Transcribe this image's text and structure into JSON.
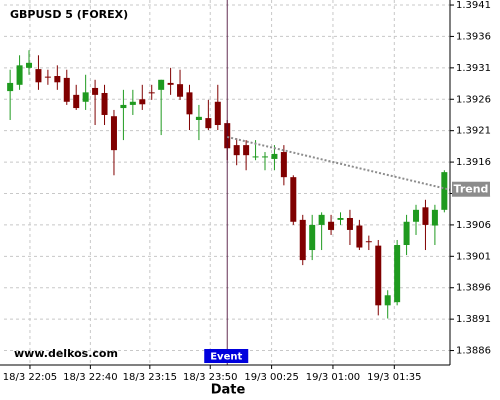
{
  "chart_data": {
    "type": "candlestick",
    "title": "GBPUSD 5 (FOREX)",
    "x_label": "Date",
    "watermark": "www.delkos.com",
    "up_color": "#1f9a1f",
    "down_color": "#800000",
    "grid": true,
    "ohlc": [
      [
        1.39273,
        1.39307,
        1.39227,
        1.39286
      ],
      [
        1.39283,
        1.3933,
        1.39275,
        1.39314
      ],
      [
        1.3931,
        1.39338,
        1.39299,
        1.39318
      ],
      [
        1.39308,
        1.3933,
        1.39275,
        1.39287
      ],
      [
        1.39296,
        1.39307,
        1.39283,
        1.39295
      ],
      [
        1.39297,
        1.39314,
        1.39275,
        1.39287
      ],
      [
        1.39294,
        1.39307,
        1.39251,
        1.39256
      ],
      [
        1.39267,
        1.39283,
        1.39243,
        1.39246
      ],
      [
        1.39256,
        1.39299,
        1.39243,
        1.39271
      ],
      [
        1.39278,
        1.39291,
        1.39219,
        1.39267
      ],
      [
        1.3927,
        1.39283,
        1.39219,
        1.39235
      ],
      [
        1.39233,
        1.39243,
        1.39139,
        1.39179
      ],
      [
        1.39246,
        1.39275,
        1.39195,
        1.39251
      ],
      [
        1.39251,
        1.39275,
        1.39235,
        1.39256
      ],
      [
        1.3926,
        1.39283,
        1.39243,
        1.39252
      ],
      [
        1.39271,
        1.39283,
        1.39259,
        1.3927
      ],
      [
        1.39275,
        1.39291,
        1.39203,
        1.39291
      ],
      [
        1.39286,
        1.3931,
        1.39267,
        1.39283
      ],
      [
        1.39284,
        1.39307,
        1.39259,
        1.39264
      ],
      [
        1.39271,
        1.39283,
        1.39211,
        1.39236
      ],
      [
        1.39227,
        1.39251,
        1.39195,
        1.39232
      ],
      [
        1.3923,
        1.39259,
        1.39211,
        1.39214
      ],
      [
        1.39256,
        1.39283,
        1.39211,
        1.39219
      ],
      [
        1.39222,
        1.39227,
        1.39163,
        1.39182
      ],
      [
        1.39187,
        1.39198,
        1.39155,
        1.39171
      ],
      [
        1.39187,
        1.39195,
        1.39147,
        1.39171
      ],
      [
        1.39168,
        1.39195,
        1.39163,
        1.39169
      ],
      [
        1.39168,
        1.39176,
        1.39147,
        1.39169
      ],
      [
        1.39165,
        1.39187,
        1.39147,
        1.39173
      ],
      [
        1.39176,
        1.39187,
        1.39123,
        1.39136
      ],
      [
        1.39136,
        1.39139,
        1.3906,
        1.39065
      ],
      [
        1.39068,
        1.39076,
        1.38996,
        1.39004
      ],
      [
        1.3902,
        1.39076,
        1.39004,
        1.3906
      ],
      [
        1.3906,
        1.3908,
        1.3902,
        1.39076
      ],
      [
        1.39065,
        1.39076,
        1.39044,
        1.39052
      ],
      [
        1.39068,
        1.3908,
        1.3906,
        1.39071
      ],
      [
        1.39071,
        1.39084,
        1.39028,
        1.39052
      ],
      [
        1.39059,
        1.39068,
        1.3902,
        1.39024
      ],
      [
        1.39034,
        1.39043,
        1.3902,
        1.39033
      ],
      [
        1.39027,
        1.39036,
        1.38916,
        1.38932
      ],
      [
        1.38932,
        1.38956,
        1.38911,
        1.38948
      ],
      [
        1.38937,
        1.39036,
        1.38932,
        1.39028
      ],
      [
        1.39028,
        1.39076,
        1.39012,
        1.39065
      ],
      [
        1.39065,
        1.39092,
        1.39044,
        1.39084
      ],
      [
        1.39088,
        1.391,
        1.3902,
        1.3906
      ],
      [
        1.39059,
        1.39092,
        1.39028,
        1.39084
      ],
      [
        1.39084,
        1.39147,
        1.3908,
        1.39144
      ]
    ],
    "xlim": [
      -0.65,
      46.6
    ],
    "xticks": [
      {
        "value": 2.1,
        "label": "18/3 22:05"
      },
      {
        "value": 8.5,
        "label": "18/3 22:40"
      },
      {
        "value": 14.8,
        "label": "18/3 23:15"
      },
      {
        "value": 21.2,
        "label": "18/3 23:50"
      },
      {
        "value": 27.7,
        "label": "19/3 00:25"
      },
      {
        "value": 34.2,
        "label": "19/3 01:00"
      },
      {
        "value": 40.7,
        "label": "19/3 01:35"
      }
    ],
    "ylim": [
      1.38837,
      1.39418
    ],
    "yticks": [
      1.3886,
      1.3891,
      1.3896,
      1.3901,
      1.3906,
      1.3911,
      1.3916,
      1.3921,
      1.3926,
      1.3931,
      1.3936,
      1.3941
    ],
    "trend": {
      "label": "Trend",
      "color": "#8c8c8c",
      "x": [
        23,
        46.6
      ],
      "values": [
        1.392,
        1.39116
      ]
    },
    "event": {
      "label": "Event",
      "x": 23,
      "color": "#4a0a35",
      "label_color": "#0000dd"
    }
  }
}
